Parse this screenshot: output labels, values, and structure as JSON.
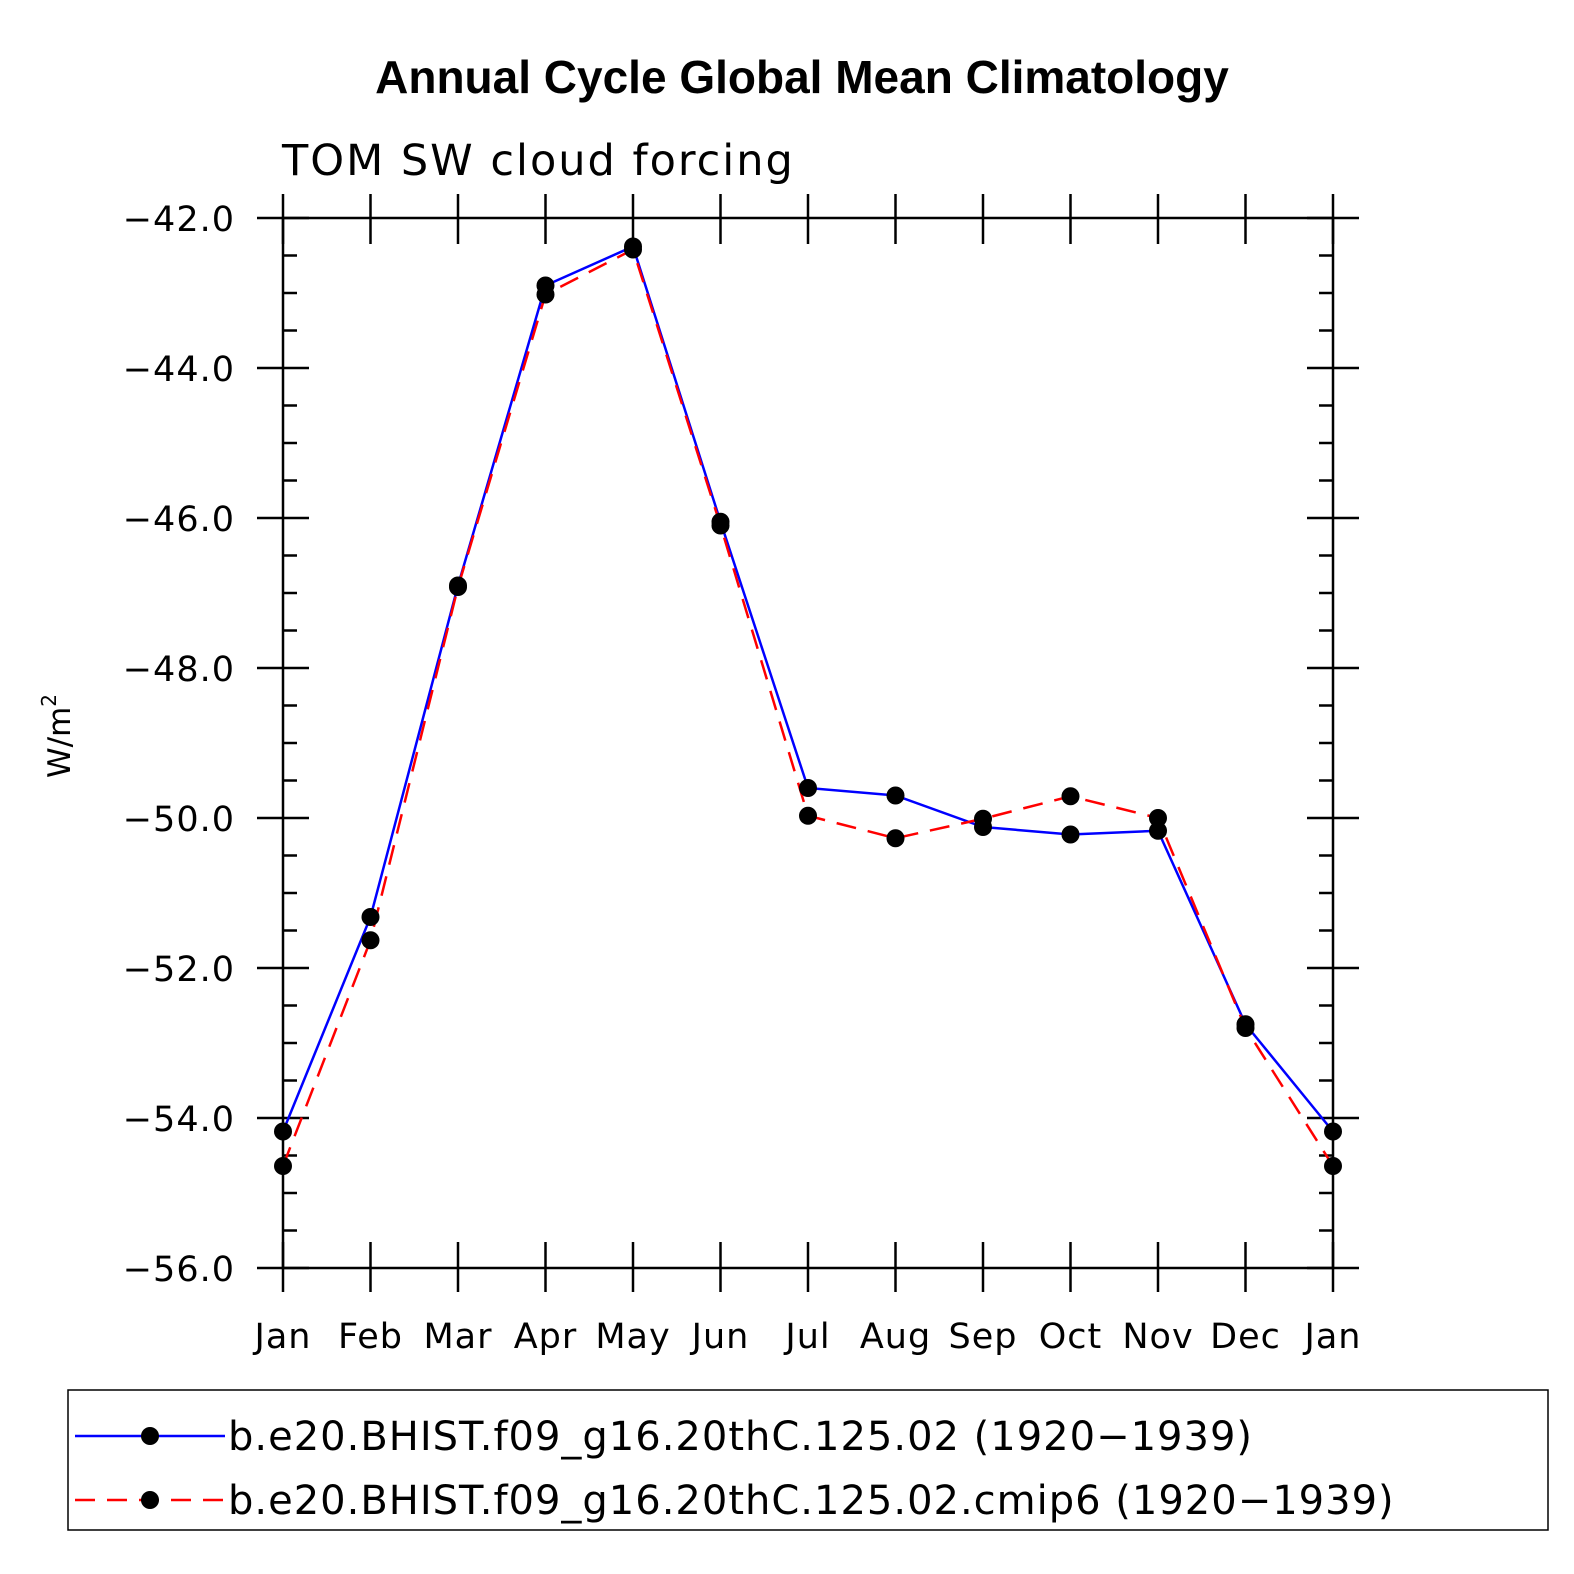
{
  "chart_data": {
    "type": "line",
    "title": "Annual Cycle Global Mean Climatology",
    "subtitle": "TOM SW cloud forcing",
    "xlabel": "",
    "ylabel": "W/m",
    "ylabel_superscript": "2",
    "categories": [
      "Jan",
      "Feb",
      "Mar",
      "Apr",
      "May",
      "Jun",
      "Jul",
      "Aug",
      "Sep",
      "Oct",
      "Nov",
      "Dec",
      "Jan"
    ],
    "ylim": [
      -56.0,
      -42.0
    ],
    "yticks": [
      "-42.0",
      "-44.0",
      "-46.0",
      "-48.0",
      "-50.0",
      "-52.0",
      "-54.0",
      "-56.0"
    ],
    "series": [
      {
        "name": "b.e20.BHIST.f09_g16.20thC.125.02 (1920−1939)",
        "color": "#0000ff",
        "dash": "solid",
        "values": [
          -54.18,
          -51.32,
          -46.9,
          -42.9,
          -42.38,
          -46.05,
          -49.6,
          -49.7,
          -50.12,
          -50.22,
          -50.17,
          -52.75,
          -54.18
        ]
      },
      {
        "name": "b.e20.BHIST.f09_g16.20thC.125.02.cmip6 (1920−1939)",
        "color": "#ff0000",
        "dash": "dashed",
        "values": [
          -54.64,
          -51.63,
          -46.92,
          -43.02,
          -42.42,
          -46.1,
          -49.97,
          -50.27,
          -50.01,
          -49.71,
          -50.0,
          -52.8,
          -54.64
        ]
      }
    ],
    "marker_color": "#000000",
    "legend_position": "bottom"
  }
}
